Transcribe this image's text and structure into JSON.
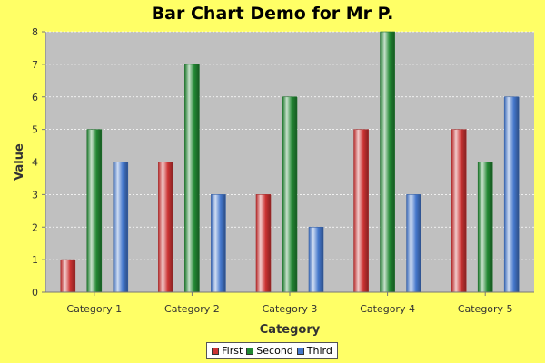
{
  "chart_data": {
    "type": "bar",
    "title": "Bar Chart Demo for Mr P.",
    "xlabel": "Category",
    "ylabel": "Value",
    "categories": [
      "Category 1",
      "Category 2",
      "Category 3",
      "Category 4",
      "Category 5"
    ],
    "series": [
      {
        "name": "First",
        "values": [
          1,
          4,
          3,
          5,
          5
        ],
        "color": "#cc3333"
      },
      {
        "name": "Second",
        "values": [
          5,
          7,
          6,
          8,
          4
        ],
        "color": "#228833"
      },
      {
        "name": "Third",
        "values": [
          4,
          3,
          2,
          3,
          6
        ],
        "color": "#4477cc"
      }
    ],
    "ylim": [
      0,
      8
    ],
    "yticks": [
      "0",
      "1",
      "2",
      "3",
      "4",
      "5",
      "6",
      "7",
      "8"
    ],
    "grid": true,
    "legend_position": "bottom"
  },
  "colors": {
    "background": "#ffff66",
    "plot_background": "#c0c0c0",
    "gridline": "#ffffff"
  }
}
